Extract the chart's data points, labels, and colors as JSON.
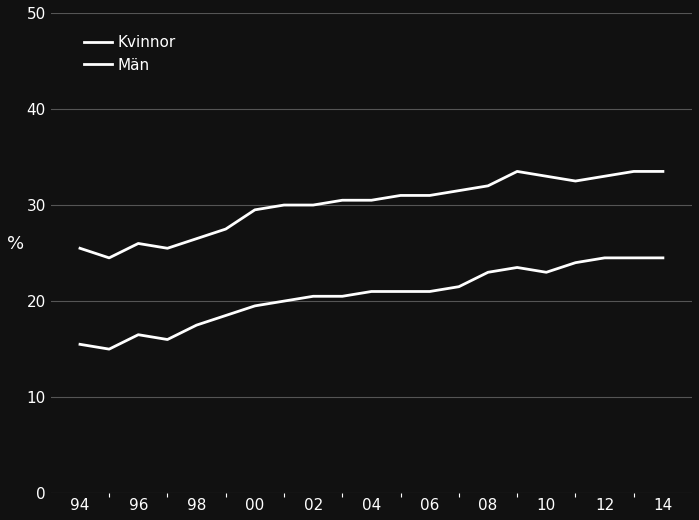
{
  "title": "",
  "ylabel": "%",
  "background_color": "#111111",
  "text_color": "#ffffff",
  "grid_color": "#555555",
  "line_color": "#ffffff",
  "years": [
    1994,
    1995,
    1996,
    1997,
    1998,
    1999,
    2000,
    2001,
    2002,
    2003,
    2004,
    2005,
    2006,
    2007,
    2008,
    2009,
    2010,
    2011,
    2012,
    2013,
    2014
  ],
  "kvinnor": [
    25.5,
    24.5,
    26.0,
    25.5,
    26.5,
    27.5,
    29.5,
    30.0,
    30.0,
    30.5,
    30.5,
    31.0,
    31.0,
    31.5,
    32.0,
    33.5,
    33.0,
    32.5,
    33.0,
    33.5,
    33.5
  ],
  "man": [
    15.5,
    15.0,
    16.5,
    16.0,
    17.5,
    18.5,
    19.5,
    20.0,
    20.5,
    20.5,
    21.0,
    21.0,
    21.0,
    21.5,
    23.0,
    23.5,
    23.0,
    24.0,
    24.5,
    24.5,
    24.5
  ],
  "legend_labels": [
    "Kvinnor",
    "Män"
  ],
  "ylim": [
    0,
    50
  ],
  "yticks": [
    0,
    10,
    20,
    30,
    40,
    50
  ],
  "xtick_labels": [
    "94",
    "96",
    "98",
    "00",
    "02",
    "04",
    "06",
    "08",
    "10",
    "12",
    "14"
  ],
  "xtick_positions": [
    1994,
    1996,
    1998,
    2000,
    2002,
    2004,
    2006,
    2008,
    2010,
    2012,
    2014
  ],
  "xlim": [
    1993,
    2015
  ]
}
